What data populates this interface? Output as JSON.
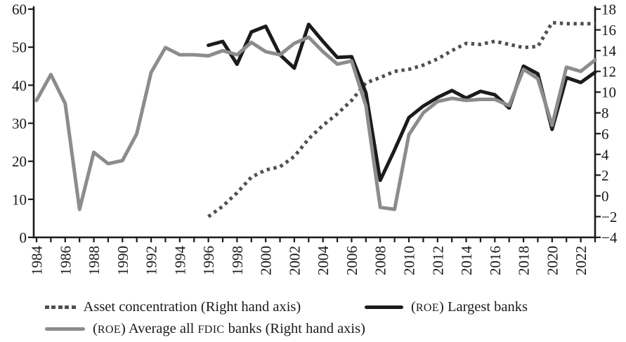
{
  "chart_data": {
    "type": "line",
    "grid": false,
    "legend_position": "bottom",
    "x_axis": {
      "tick_year_start": 1984,
      "tick_year_end": 2023,
      "label_years": [
        "1984",
        "1986",
        "1988",
        "1990",
        "1992",
        "1994",
        "1996",
        "1998",
        "2000",
        "2002",
        "2004",
        "2006",
        "2008",
        "2010",
        "2012",
        "2014",
        "2016",
        "2018",
        "2020",
        "2022"
      ]
    },
    "left_axis": {
      "range": [
        0,
        60
      ],
      "ticks": [
        0,
        10,
        20,
        30,
        40,
        50,
        60
      ]
    },
    "right_axis": {
      "range": [
        -4,
        18
      ],
      "ticks": [
        -4,
        -2,
        0,
        2,
        4,
        6,
        8,
        10,
        12,
        14,
        16,
        18
      ],
      "mapping": "right_value = left_value * 22/60 - 4"
    },
    "series": [
      {
        "name": "Asset concentration (Right hand axis)",
        "slug": "asset-concentration",
        "style": "dotted",
        "color": "#4f4f4f",
        "axis": "right",
        "start_year": 1996,
        "values": [
          -2.0,
          -1.0,
          0.3,
          1.8,
          2.5,
          2.8,
          3.8,
          5.5,
          6.8,
          7.9,
          9.2,
          10.9,
          11.4,
          12.0,
          12.2,
          12.6,
          13.2,
          14.0,
          14.7,
          14.6,
          14.9,
          14.6,
          14.3,
          14.4,
          16.7,
          16.6,
          16.6,
          16.6
        ]
      },
      {
        "name": "(ROE) Largest banks",
        "slug": "roe-largest-banks",
        "style": "solid",
        "color": "#1b1b1b",
        "axis": "left",
        "start_year": 1996,
        "values": [
          50.5,
          51.5,
          45.5,
          54.0,
          55.5,
          48.0,
          44.5,
          56.0,
          51.5,
          47.3,
          47.5,
          38.0,
          15.0,
          23.0,
          31.5,
          34.5,
          36.8,
          38.6,
          36.6,
          38.4,
          37.5,
          34.0,
          45.0,
          43.0,
          28.4,
          42.0,
          40.7,
          43.4
        ]
      },
      {
        "name": "(ROE) Average all FDIC banks (Right hand axis)",
        "slug": "roe-average-all-fdic-banks",
        "style": "solid",
        "color": "#8c8c8c",
        "axis": "right",
        "start_year": 1984,
        "values": [
          9.2,
          11.7,
          8.9,
          -1.3,
          4.2,
          3.1,
          3.4,
          6.0,
          11.9,
          14.3,
          13.6,
          13.6,
          13.5,
          14.0,
          13.6,
          14.8,
          13.9,
          13.6,
          14.7,
          15.3,
          13.9,
          12.7,
          13.0,
          8.7,
          -1.1,
          -1.3,
          5.9,
          8.0,
          9.1,
          9.4,
          9.2,
          9.3,
          9.3,
          8.7,
          12.2,
          11.3,
          6.8,
          12.4,
          12.0,
          13.1
        ]
      }
    ],
    "colors": {
      "axis": "#1a1a1a",
      "text": "#1a1a1a"
    }
  }
}
